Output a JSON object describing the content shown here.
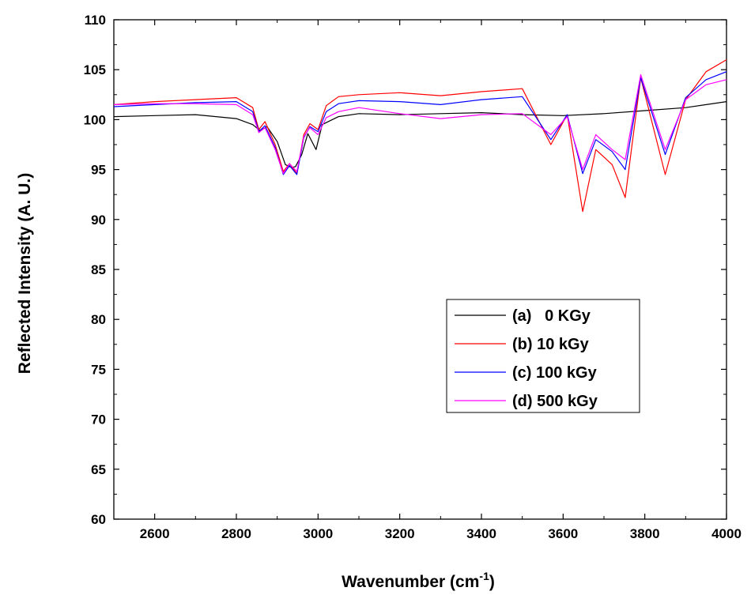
{
  "chart_data": {
    "type": "line",
    "xlabel": "Wavenumber (cm",
    "xlabel_sup": "-1",
    "xlabel_tail": ")",
    "ylabel": "Reflected Intensity (A. U.)",
    "xlim": [
      2500,
      4000
    ],
    "ylim": [
      60,
      110
    ],
    "x_ticks": [
      2600,
      2800,
      3000,
      3200,
      3400,
      3600,
      3800,
      4000
    ],
    "y_ticks": [
      60,
      65,
      70,
      75,
      80,
      85,
      90,
      95,
      100,
      105,
      110
    ],
    "grid": false,
    "legend_position": "center-right",
    "series": [
      {
        "name": "(a)   0 KGy",
        "color": "#000000",
        "x": [
          2500,
          2600,
          2700,
          2800,
          2840,
          2858,
          2875,
          2900,
          2920,
          2935,
          2945,
          2960,
          2975,
          2995,
          3010,
          3050,
          3100,
          3200,
          3300,
          3400,
          3500,
          3600,
          3700,
          3800,
          3900,
          4000
        ],
        "y": [
          100.3,
          100.4,
          100.5,
          100.1,
          99.5,
          98.9,
          99.3,
          97.8,
          95.5,
          95.2,
          95.3,
          96.5,
          98.6,
          97.0,
          99.5,
          100.3,
          100.6,
          100.5,
          100.6,
          100.7,
          100.5,
          100.4,
          100.6,
          100.9,
          101.2,
          101.8
        ]
      },
      {
        "name": "(b) 10 kGy",
        "color": "#ff0000",
        "x": [
          2500,
          2600,
          2700,
          2800,
          2840,
          2855,
          2870,
          2895,
          2915,
          2930,
          2948,
          2965,
          2980,
          3000,
          3020,
          3050,
          3100,
          3200,
          3300,
          3400,
          3500,
          3570,
          3610,
          3648,
          3680,
          3720,
          3752,
          3790,
          3850,
          3900,
          3950,
          4000
        ],
        "y": [
          101.5,
          101.8,
          102.0,
          102.2,
          101.2,
          99.0,
          99.8,
          97.5,
          94.8,
          95.6,
          94.6,
          98.5,
          99.6,
          99.0,
          101.4,
          102.3,
          102.5,
          102.7,
          102.4,
          102.8,
          103.1,
          97.5,
          100.5,
          90.8,
          97.0,
          95.5,
          92.2,
          104.2,
          94.5,
          102.0,
          104.8,
          106.0
        ]
      },
      {
        "name": "(c) 100 kGy",
        "color": "#0000ff",
        "x": [
          2500,
          2600,
          2700,
          2800,
          2840,
          2855,
          2870,
          2895,
          2915,
          2930,
          2948,
          2965,
          2980,
          3000,
          3020,
          3050,
          3100,
          3200,
          3300,
          3400,
          3500,
          3570,
          3610,
          3648,
          3680,
          3720,
          3752,
          3790,
          3850,
          3900,
          3950,
          4000
        ],
        "y": [
          101.3,
          101.5,
          101.7,
          101.8,
          100.8,
          98.8,
          99.4,
          97.2,
          94.5,
          95.4,
          94.5,
          98.2,
          99.3,
          98.8,
          100.8,
          101.6,
          101.9,
          101.8,
          101.5,
          102.0,
          102.3,
          98.0,
          100.5,
          94.6,
          98.0,
          96.8,
          95.0,
          104.2,
          96.5,
          102.2,
          104.0,
          104.8
        ]
      },
      {
        "name": "(d) 500 kGy",
        "color": "#ff00ff",
        "x": [
          2500,
          2600,
          2700,
          2800,
          2840,
          2855,
          2870,
          2895,
          2915,
          2930,
          2948,
          2965,
          2980,
          3000,
          3020,
          3050,
          3100,
          3200,
          3300,
          3400,
          3500,
          3570,
          3610,
          3648,
          3680,
          3720,
          3752,
          3790,
          3850,
          3900,
          3950,
          4000
        ],
        "y": [
          101.5,
          101.6,
          101.6,
          101.5,
          100.5,
          98.7,
          99.2,
          97.0,
          94.6,
          95.6,
          94.8,
          98.3,
          99.2,
          98.5,
          100.2,
          100.8,
          101.2,
          100.6,
          100.1,
          100.5,
          100.6,
          98.5,
          100.3,
          95.0,
          98.5,
          97.0,
          96.0,
          104.5,
          97.0,
          102.0,
          103.5,
          104.0
        ]
      }
    ]
  }
}
